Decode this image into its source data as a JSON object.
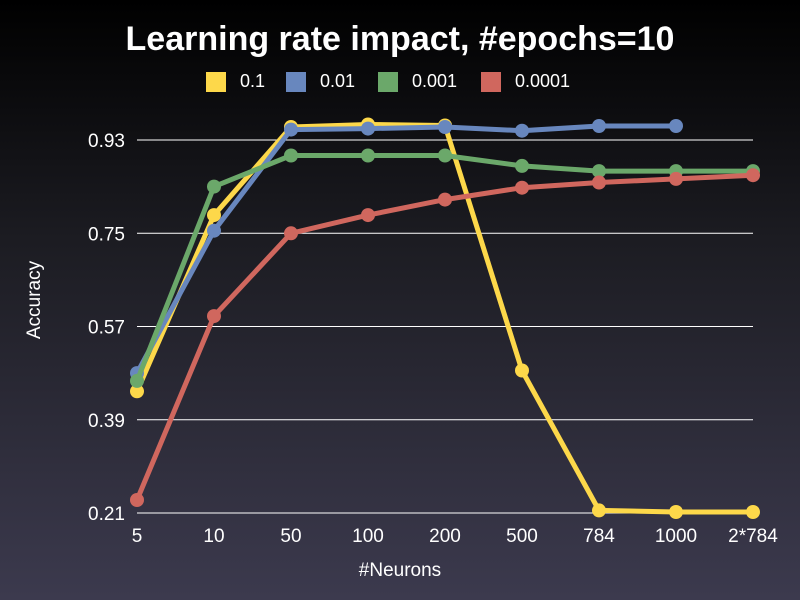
{
  "chart_data": {
    "type": "line",
    "title": "Learning rate impact, #epochs=10",
    "xlabel": "#Neurons",
    "ylabel": "Accuracy",
    "categories": [
      "5",
      "10",
      "50",
      "100",
      "200",
      "500",
      "784",
      "1000",
      "2*784"
    ],
    "yticks": [
      "0.21",
      "0.39",
      "0.57",
      "0.75",
      "0.93"
    ],
    "ylim": [
      0.21,
      0.93
    ],
    "grid": true,
    "legend_position": "top",
    "series": [
      {
        "name": "0.1",
        "color": "#fdd84a",
        "values": [
          0.445,
          0.785,
          0.955,
          0.96,
          0.958,
          0.485,
          0.215,
          0.212,
          0.212
        ]
      },
      {
        "name": "0.01",
        "color": "#6887be",
        "values": [
          0.48,
          0.755,
          0.95,
          0.952,
          0.955,
          0.948,
          0.957,
          0.957,
          null
        ]
      },
      {
        "name": "0.001",
        "color": "#6ba86a",
        "values": [
          0.465,
          0.84,
          0.9,
          0.9,
          0.9,
          0.88,
          0.87,
          0.87,
          0.87
        ]
      },
      {
        "name": "0.0001",
        "color": "#d0675e",
        "values": [
          0.235,
          0.59,
          0.75,
          0.785,
          0.815,
          0.838,
          0.848,
          0.855,
          0.862
        ]
      }
    ]
  }
}
